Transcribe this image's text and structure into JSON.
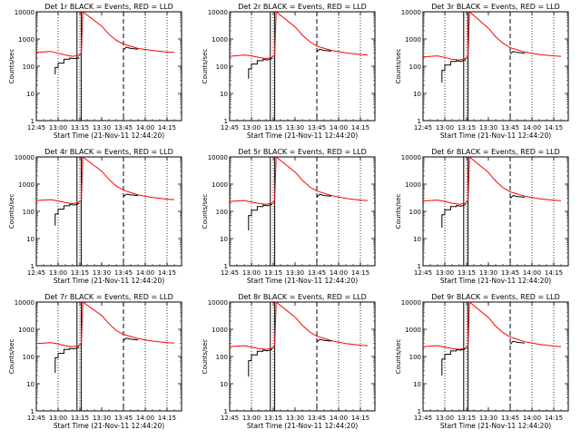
{
  "chart_data": {
    "type": "line",
    "y_scale": "log",
    "ylim": [
      1,
      10000
    ],
    "xlim": [
      "12:45",
      "14:25"
    ],
    "x_tick_labels": [
      "12:45",
      "13:00",
      "13:15",
      "13:30",
      "13:45",
      "14:00",
      "14:15"
    ],
    "y_tick_labels": [
      "1",
      "10",
      "100",
      "1000",
      "10000"
    ],
    "ylabel": "Counts/sec",
    "xlabel": "Start Time (21-Nov-11 12:44:20)",
    "series_colors": {
      "events": "#000000",
      "lld": "#ff0000"
    },
    "panels": [
      {
        "title": "Det 1r BLACK = Events, RED = LLD",
        "events": {
          "x": [
            "12:58",
            "12:58",
            "13:00",
            "13:00",
            "13:04",
            "13:04",
            "13:08",
            "13:08",
            "13:11",
            "13:14",
            "13:14"
          ],
          "y": [
            50,
            90,
            90,
            130,
            130,
            180,
            180,
            200,
            190,
            200,
            220
          ]
        },
        "lld": {
          "x": [
            "12:45",
            "12:55",
            "13:00",
            "13:05",
            "13:10",
            "13:14",
            "13:16",
            "13:17",
            "13:30",
            "13:35",
            "13:40",
            "13:45",
            "13:55",
            "14:05",
            "14:15",
            "14:20"
          ],
          "y": [
            320,
            350,
            300,
            260,
            230,
            250,
            300,
            10000,
            3000,
            1500,
            900,
            650,
            450,
            380,
            330,
            320
          ]
        },
        "events_after": {
          "x": [
            "13:45",
            "13:47",
            "13:50",
            "13:55"
          ],
          "y": [
            400,
            500,
            450,
            420
          ]
        }
      },
      {
        "title": "Det 2r BLACK = Events, RED = LLD",
        "events": {
          "x": [
            "12:58",
            "12:58",
            "13:00",
            "13:00",
            "13:04",
            "13:04",
            "13:08",
            "13:08",
            "13:11",
            "13:14",
            "13:14"
          ],
          "y": [
            35,
            80,
            80,
            120,
            120,
            160,
            160,
            180,
            170,
            190,
            200
          ]
        },
        "lld": {
          "x": [
            "12:45",
            "12:55",
            "13:00",
            "13:05",
            "13:10",
            "13:14",
            "13:16",
            "13:17",
            "13:30",
            "13:35",
            "13:40",
            "13:45",
            "13:55",
            "14:05",
            "14:15",
            "14:20"
          ],
          "y": [
            230,
            260,
            240,
            210,
            190,
            210,
            250,
            10000,
            2800,
            1400,
            800,
            550,
            380,
            310,
            270,
            260
          ]
        },
        "events_after": {
          "x": [
            "13:45",
            "13:47",
            "13:50",
            "13:55"
          ],
          "y": [
            350,
            420,
            380,
            360
          ]
        }
      },
      {
        "title": "Det 3r BLACK = Events, RED = LLD",
        "events": {
          "x": [
            "12:58",
            "12:58",
            "13:00",
            "13:00",
            "13:04",
            "13:04",
            "13:08",
            "13:08",
            "13:11",
            "13:14",
            "13:14"
          ],
          "y": [
            25,
            70,
            70,
            110,
            110,
            150,
            150,
            160,
            150,
            170,
            180
          ]
        },
        "lld": {
          "x": [
            "12:45",
            "12:55",
            "13:00",
            "13:05",
            "13:10",
            "13:14",
            "13:16",
            "13:17",
            "13:30",
            "13:35",
            "13:40",
            "13:45",
            "13:55",
            "14:05",
            "14:15",
            "14:20"
          ],
          "y": [
            220,
            240,
            210,
            180,
            170,
            190,
            230,
            10000,
            2500,
            1200,
            700,
            480,
            330,
            270,
            240,
            230
          ]
        },
        "events_after": {
          "x": [
            "13:45",
            "13:47",
            "13:50",
            "13:55"
          ],
          "y": [
            280,
            350,
            320,
            300
          ]
        }
      },
      {
        "title": "Det 4r BLACK = Events, RED = LLD",
        "events": {
          "x": [
            "12:58",
            "12:58",
            "13:00",
            "13:00",
            "13:04",
            "13:04",
            "13:08",
            "13:08",
            "13:11",
            "13:14",
            "13:14"
          ],
          "y": [
            30,
            80,
            80,
            120,
            120,
            160,
            160,
            180,
            170,
            190,
            200
          ]
        },
        "lld": {
          "x": [
            "12:45",
            "12:55",
            "13:00",
            "13:05",
            "13:10",
            "13:14",
            "13:16",
            "13:17",
            "13:30",
            "13:35",
            "13:40",
            "13:45",
            "13:55",
            "14:05",
            "14:15",
            "14:20"
          ],
          "y": [
            250,
            270,
            240,
            210,
            190,
            210,
            250,
            10000,
            3000,
            1500,
            850,
            600,
            400,
            320,
            280,
            270
          ]
        },
        "events_after": {
          "x": [
            "13:45",
            "13:47",
            "13:50",
            "13:55"
          ],
          "y": [
            350,
            430,
            400,
            380
          ]
        }
      },
      {
        "title": "Det 5r BLACK = Events, RED = LLD",
        "events": {
          "x": [
            "12:58",
            "12:58",
            "13:00",
            "13:00",
            "13:04",
            "13:04",
            "13:08",
            "13:08",
            "13:11",
            "13:14",
            "13:14"
          ],
          "y": [
            20,
            70,
            70,
            110,
            110,
            150,
            150,
            170,
            160,
            180,
            190
          ]
        },
        "lld": {
          "x": [
            "12:45",
            "12:55",
            "13:00",
            "13:05",
            "13:10",
            "13:14",
            "13:16",
            "13:17",
            "13:30",
            "13:35",
            "13:40",
            "13:45",
            "13:55",
            "14:05",
            "14:15",
            "14:20"
          ],
          "y": [
            230,
            250,
            220,
            195,
            180,
            200,
            240,
            10000,
            2800,
            1400,
            800,
            560,
            380,
            300,
            260,
            250
          ]
        },
        "events_after": {
          "x": [
            "13:45",
            "13:47",
            "13:50",
            "13:55"
          ],
          "y": [
            330,
            420,
            380,
            360
          ]
        }
      },
      {
        "title": "Det 6r BLACK = Events, RED = LLD",
        "events": {
          "x": [
            "12:58",
            "12:58",
            "13:00",
            "13:00",
            "13:04",
            "13:04",
            "13:08",
            "13:08",
            "13:11",
            "13:14",
            "13:14"
          ],
          "y": [
            25,
            75,
            75,
            115,
            115,
            150,
            150,
            165,
            155,
            175,
            185
          ]
        },
        "lld": {
          "x": [
            "12:45",
            "12:55",
            "13:00",
            "13:05",
            "13:10",
            "13:14",
            "13:16",
            "13:17",
            "13:30",
            "13:35",
            "13:40",
            "13:45",
            "13:55",
            "14:05",
            "14:15",
            "14:20"
          ],
          "y": [
            240,
            260,
            230,
            200,
            180,
            200,
            240,
            10000,
            2700,
            1300,
            750,
            520,
            360,
            290,
            255,
            245
          ]
        },
        "events_after": {
          "x": [
            "13:45",
            "13:47",
            "13:50",
            "13:55"
          ],
          "y": [
            300,
            380,
            350,
            330
          ]
        }
      },
      {
        "title": "Det 7r BLACK = Events, RED = LLD",
        "events": {
          "x": [
            "12:58",
            "12:58",
            "13:00",
            "13:00",
            "13:04",
            "13:04",
            "13:08",
            "13:08",
            "13:11",
            "13:14",
            "13:14"
          ],
          "y": [
            25,
            90,
            90,
            130,
            130,
            180,
            180,
            200,
            190,
            210,
            230
          ]
        },
        "lld": {
          "x": [
            "12:45",
            "12:55",
            "13:00",
            "13:05",
            "13:10",
            "13:14",
            "13:16",
            "13:17",
            "13:30",
            "13:35",
            "13:40",
            "13:45",
            "13:55",
            "14:05",
            "14:15",
            "14:20"
          ],
          "y": [
            300,
            320,
            290,
            250,
            230,
            250,
            300,
            10000,
            3200,
            1600,
            900,
            650,
            450,
            370,
            320,
            310
          ]
        },
        "events_after": {
          "x": [
            "13:45",
            "13:47",
            "13:50",
            "13:55"
          ],
          "y": [
            380,
            470,
            430,
            400
          ]
        }
      },
      {
        "title": "Det 8r BLACK = Events, RED = LLD",
        "events": {
          "x": [
            "12:58",
            "12:58",
            "13:00",
            "13:00",
            "13:04",
            "13:04",
            "13:08",
            "13:08",
            "13:11",
            "13:14",
            "13:14"
          ],
          "y": [
            18,
            70,
            70,
            115,
            115,
            155,
            155,
            170,
            160,
            180,
            190
          ]
        },
        "lld": {
          "x": [
            "12:45",
            "12:55",
            "13:00",
            "13:05",
            "13:10",
            "13:14",
            "13:16",
            "13:17",
            "13:30",
            "13:35",
            "13:40",
            "13:45",
            "13:55",
            "14:05",
            "14:15",
            "14:20"
          ],
          "y": [
            230,
            250,
            220,
            195,
            180,
            200,
            240,
            10000,
            2800,
            1400,
            800,
            560,
            380,
            300,
            260,
            250
          ]
        },
        "events_after": {
          "x": [
            "13:45",
            "13:47",
            "13:50",
            "13:55"
          ],
          "y": [
            350,
            420,
            390,
            370
          ]
        }
      },
      {
        "title": "Det 9r BLACK = Events, RED = LLD",
        "events": {
          "x": [
            "12:58",
            "12:58",
            "13:00",
            "13:00",
            "13:04",
            "13:04",
            "13:08",
            "13:08",
            "13:11",
            "13:14",
            "13:14"
          ],
          "y": [
            20,
            80,
            80,
            120,
            120,
            160,
            160,
            180,
            170,
            190,
            200
          ]
        },
        "lld": {
          "x": [
            "12:45",
            "12:55",
            "13:00",
            "13:05",
            "13:10",
            "13:14",
            "13:16",
            "13:17",
            "13:30",
            "13:35",
            "13:40",
            "13:45",
            "13:55",
            "14:05",
            "14:15",
            "14:20"
          ],
          "y": [
            230,
            250,
            220,
            195,
            180,
            200,
            240,
            10000,
            2700,
            1300,
            750,
            520,
            350,
            280,
            240,
            230
          ]
        },
        "events_after": {
          "x": [
            "13:45",
            "13:47",
            "13:50",
            "13:55"
          ],
          "y": [
            280,
            360,
            330,
            310
          ]
        }
      }
    ],
    "markers": {
      "dotted_lines": [
        "13:00",
        "13:15",
        "14:00",
        "14:15"
      ],
      "solid_lines": [
        "13:13",
        "13:16"
      ],
      "dashed_line": "13:45"
    }
  }
}
